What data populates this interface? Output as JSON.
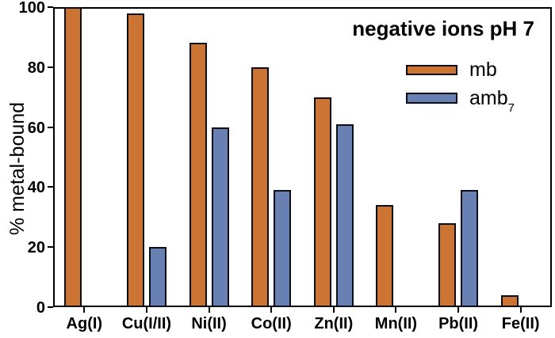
{
  "chart_data": {
    "type": "bar",
    "title": "negative ions pH 7",
    "xlabel": "",
    "ylabel": "% metal-bound",
    "categories": [
      "Ag(I)",
      "Cu(I/II)",
      "Ni(II)",
      "Co(II)",
      "Zn(II)",
      "Mn(II)",
      "Pb(II)",
      "Fe(II)"
    ],
    "series": [
      {
        "name": "mb",
        "color": "#CC7433",
        "values": [
          100,
          98,
          88,
          80,
          70,
          34,
          28,
          4
        ]
      },
      {
        "name": "amb7",
        "color": "#6880B2",
        "values": [
          null,
          20,
          60,
          39,
          61,
          null,
          39,
          null
        ]
      }
    ],
    "ylim": [
      0,
      100
    ],
    "yticks": [
      0,
      20,
      40,
      60,
      80,
      100
    ],
    "grid": false,
    "legend_position": "upper-right",
    "bar_border_color": "#0d0d17",
    "frame_color": "#000000"
  },
  "legend": {
    "items": [
      {
        "label": "mb",
        "subscript": "",
        "color": "#CC7433"
      },
      {
        "label": "amb",
        "subscript": "7",
        "color": "#6880B2"
      }
    ]
  }
}
